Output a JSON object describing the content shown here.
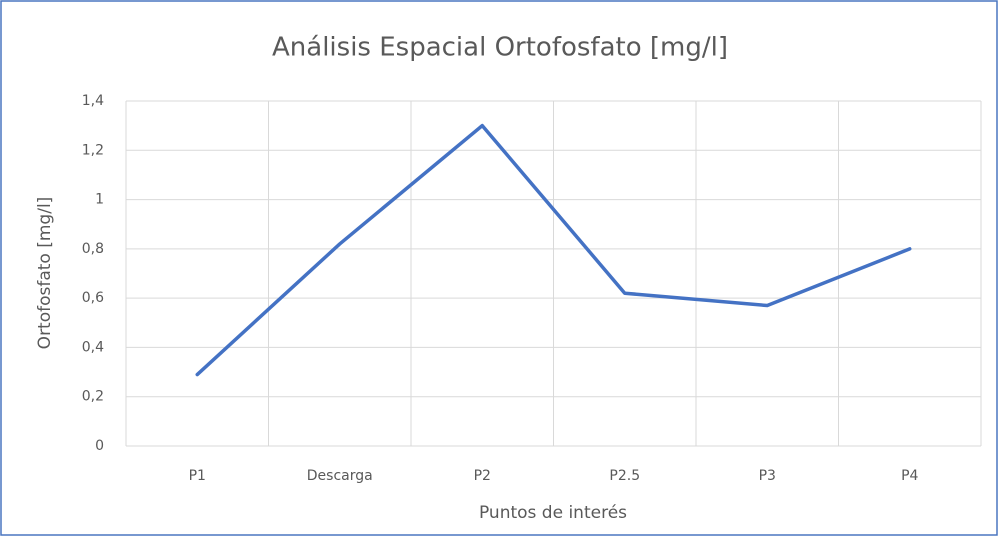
{
  "chart_data": {
    "type": "line",
    "title": "Análisis Espacial Ortofosfato [mg/l]",
    "x_label": "Puntos de interés",
    "y_label": "Ortofosfato [mg/l]",
    "categories": [
      "P1",
      "Descarga",
      "P2",
      "P2.5",
      "P3",
      "P4"
    ],
    "series": [
      {
        "name": "Ortofosfato",
        "color": "#4472c4",
        "values": [
          0.29,
          0.82,
          1.3,
          0.62,
          0.57,
          0.8
        ]
      }
    ],
    "ylim": [
      0,
      1.4
    ],
    "yticks": [
      0,
      {
        "value": 0.2,
        "label": "0,2"
      },
      {
        "value": 0.4,
        "label": "0,4"
      },
      {
        "value": 0.6,
        "label": "0,6"
      },
      {
        "value": 0.8,
        "label": "0,8"
      },
      1,
      {
        "value": 1.2,
        "label": "1,2"
      },
      {
        "value": 1.4,
        "label": "1,4"
      }
    ],
    "grid": true
  }
}
